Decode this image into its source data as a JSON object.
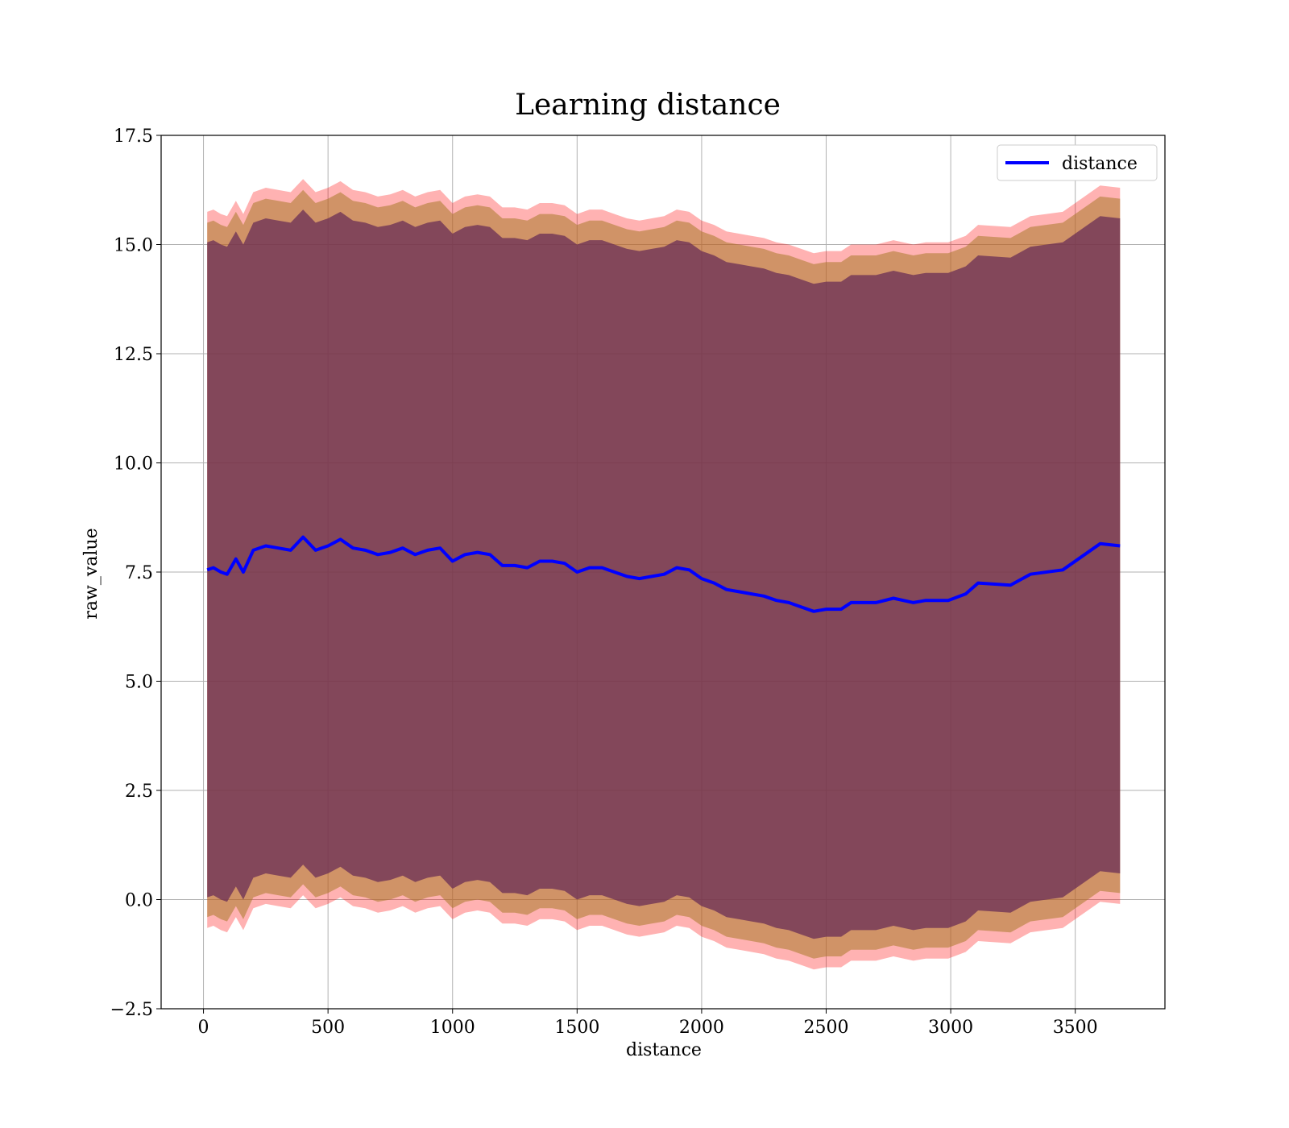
{
  "chart_data": {
    "type": "area",
    "title": "Learning distance",
    "xlabel": "distance",
    "ylabel": "raw_value",
    "xlim": [
      -170,
      3860
    ],
    "ylim": [
      -2.5,
      17.5
    ],
    "xticks": [
      0,
      500,
      1000,
      1500,
      2000,
      2500,
      3000,
      3500
    ],
    "yticks": [
      -2.5,
      0.0,
      2.5,
      5.0,
      7.5,
      10.0,
      12.5,
      15.0,
      17.5
    ],
    "xtick_labels": [
      "0",
      "500",
      "1000",
      "1500",
      "2000",
      "2500",
      "3000",
      "3500"
    ],
    "ytick_labels": [
      "−2.5",
      "0.0",
      "2.5",
      "5.0",
      "7.5",
      "10.0",
      "12.5",
      "15.0",
      "17.5"
    ],
    "grid": true,
    "legend_position": "top-right",
    "colors": {
      "line": "#0000ff",
      "band_outer": "#ff0000",
      "band_middle": "#aa7a2a",
      "band_inner": "#6a2e55",
      "grid": "#b0b0b0"
    },
    "series": [
      {
        "name": "distance",
        "x": [
          15,
          40,
          70,
          95,
          130,
          160,
          200,
          250,
          300,
          350,
          400,
          450,
          500,
          550,
          600,
          650,
          700,
          750,
          800,
          850,
          900,
          950,
          1000,
          1050,
          1100,
          1150,
          1200,
          1250,
          1300,
          1350,
          1400,
          1450,
          1500,
          1550,
          1600,
          1650,
          1700,
          1750,
          1800,
          1850,
          1900,
          1950,
          2000,
          2050,
          2100,
          2150,
          2200,
          2250,
          2300,
          2350,
          2400,
          2450,
          2500,
          2560,
          2600,
          2650,
          2700,
          2770,
          2850,
          2900,
          2990,
          3060,
          3110,
          3240,
          3320,
          3450,
          3600,
          3680
        ],
        "values": [
          7.55,
          7.6,
          7.5,
          7.45,
          7.8,
          7.5,
          8.0,
          8.1,
          8.05,
          8.0,
          8.3,
          8.0,
          8.1,
          8.25,
          8.05,
          8.0,
          7.9,
          7.95,
          8.05,
          7.9,
          8.0,
          8.05,
          7.75,
          7.9,
          7.95,
          7.9,
          7.65,
          7.65,
          7.6,
          7.75,
          7.75,
          7.7,
          7.5,
          7.6,
          7.6,
          7.5,
          7.4,
          7.35,
          7.4,
          7.45,
          7.6,
          7.55,
          7.35,
          7.25,
          7.1,
          7.05,
          7.0,
          6.95,
          6.85,
          6.8,
          6.7,
          6.6,
          6.65,
          6.65,
          6.8,
          6.8,
          6.8,
          6.9,
          6.8,
          6.85,
          6.85,
          7.0,
          7.25,
          7.2,
          7.45,
          7.55,
          8.15,
          8.1
        ]
      }
    ],
    "bands": [
      {
        "upper_offset": 8.2,
        "lower_offset": 8.2
      },
      {
        "upper_offset": 7.95,
        "lower_offset": 7.95
      },
      {
        "upper_offset": 7.5,
        "lower_offset": 7.5
      }
    ]
  }
}
